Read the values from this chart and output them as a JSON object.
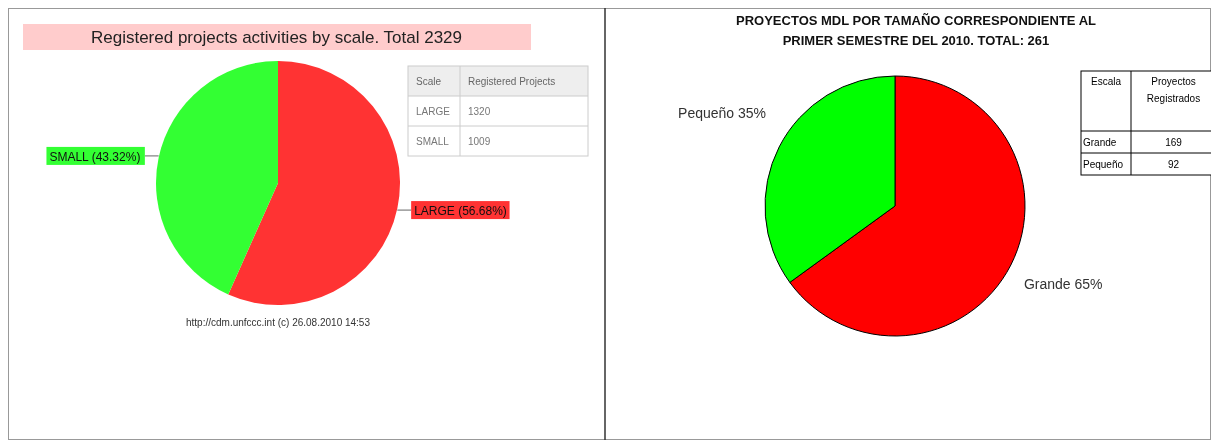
{
  "chart_data": [
    {
      "type": "pie",
      "title": "Registered projects activities by scale. Total 2329",
      "categories": [
        "LARGE",
        "SMALL"
      ],
      "values": [
        56.68,
        43.32
      ],
      "colors": [
        "#ff3333",
        "#33ff33"
      ],
      "value_labels": [
        "(56.68%)",
        "(43.32%)"
      ],
      "annotations": [
        "http://cdm.unfccc.int (c) 26.08.2010 14:53"
      ]
    },
    {
      "type": "other",
      "legend_title": "Scale",
      "ylabel": "Registered Projects",
      "categories": [
        "LARGE",
        "SMALL"
      ],
      "values": [
        1320,
        1009
      ],
      "data_labels": true
    },
    {
      "type": "pie",
      "title": "PROYECTOS MDL POR TAMAÑO CORRESPONDIENTE AL PRIMER SEMESTRE DEL 2010. TOTAL: 261",
      "categories": [
        "Grande",
        "Pequeño"
      ],
      "values": [
        65,
        35
      ],
      "colors": [
        "#ff0000",
        "#00ff00"
      ],
      "value_labels": [
        "65%",
        "35%"
      ]
    },
    {
      "type": "other",
      "legend_title": "Escala",
      "ylabel": "Proyectos Registrados",
      "categories": [
        "Grande",
        "Pequeño"
      ],
      "values": [
        169,
        92
      ],
      "data_labels": true
    }
  ]
}
